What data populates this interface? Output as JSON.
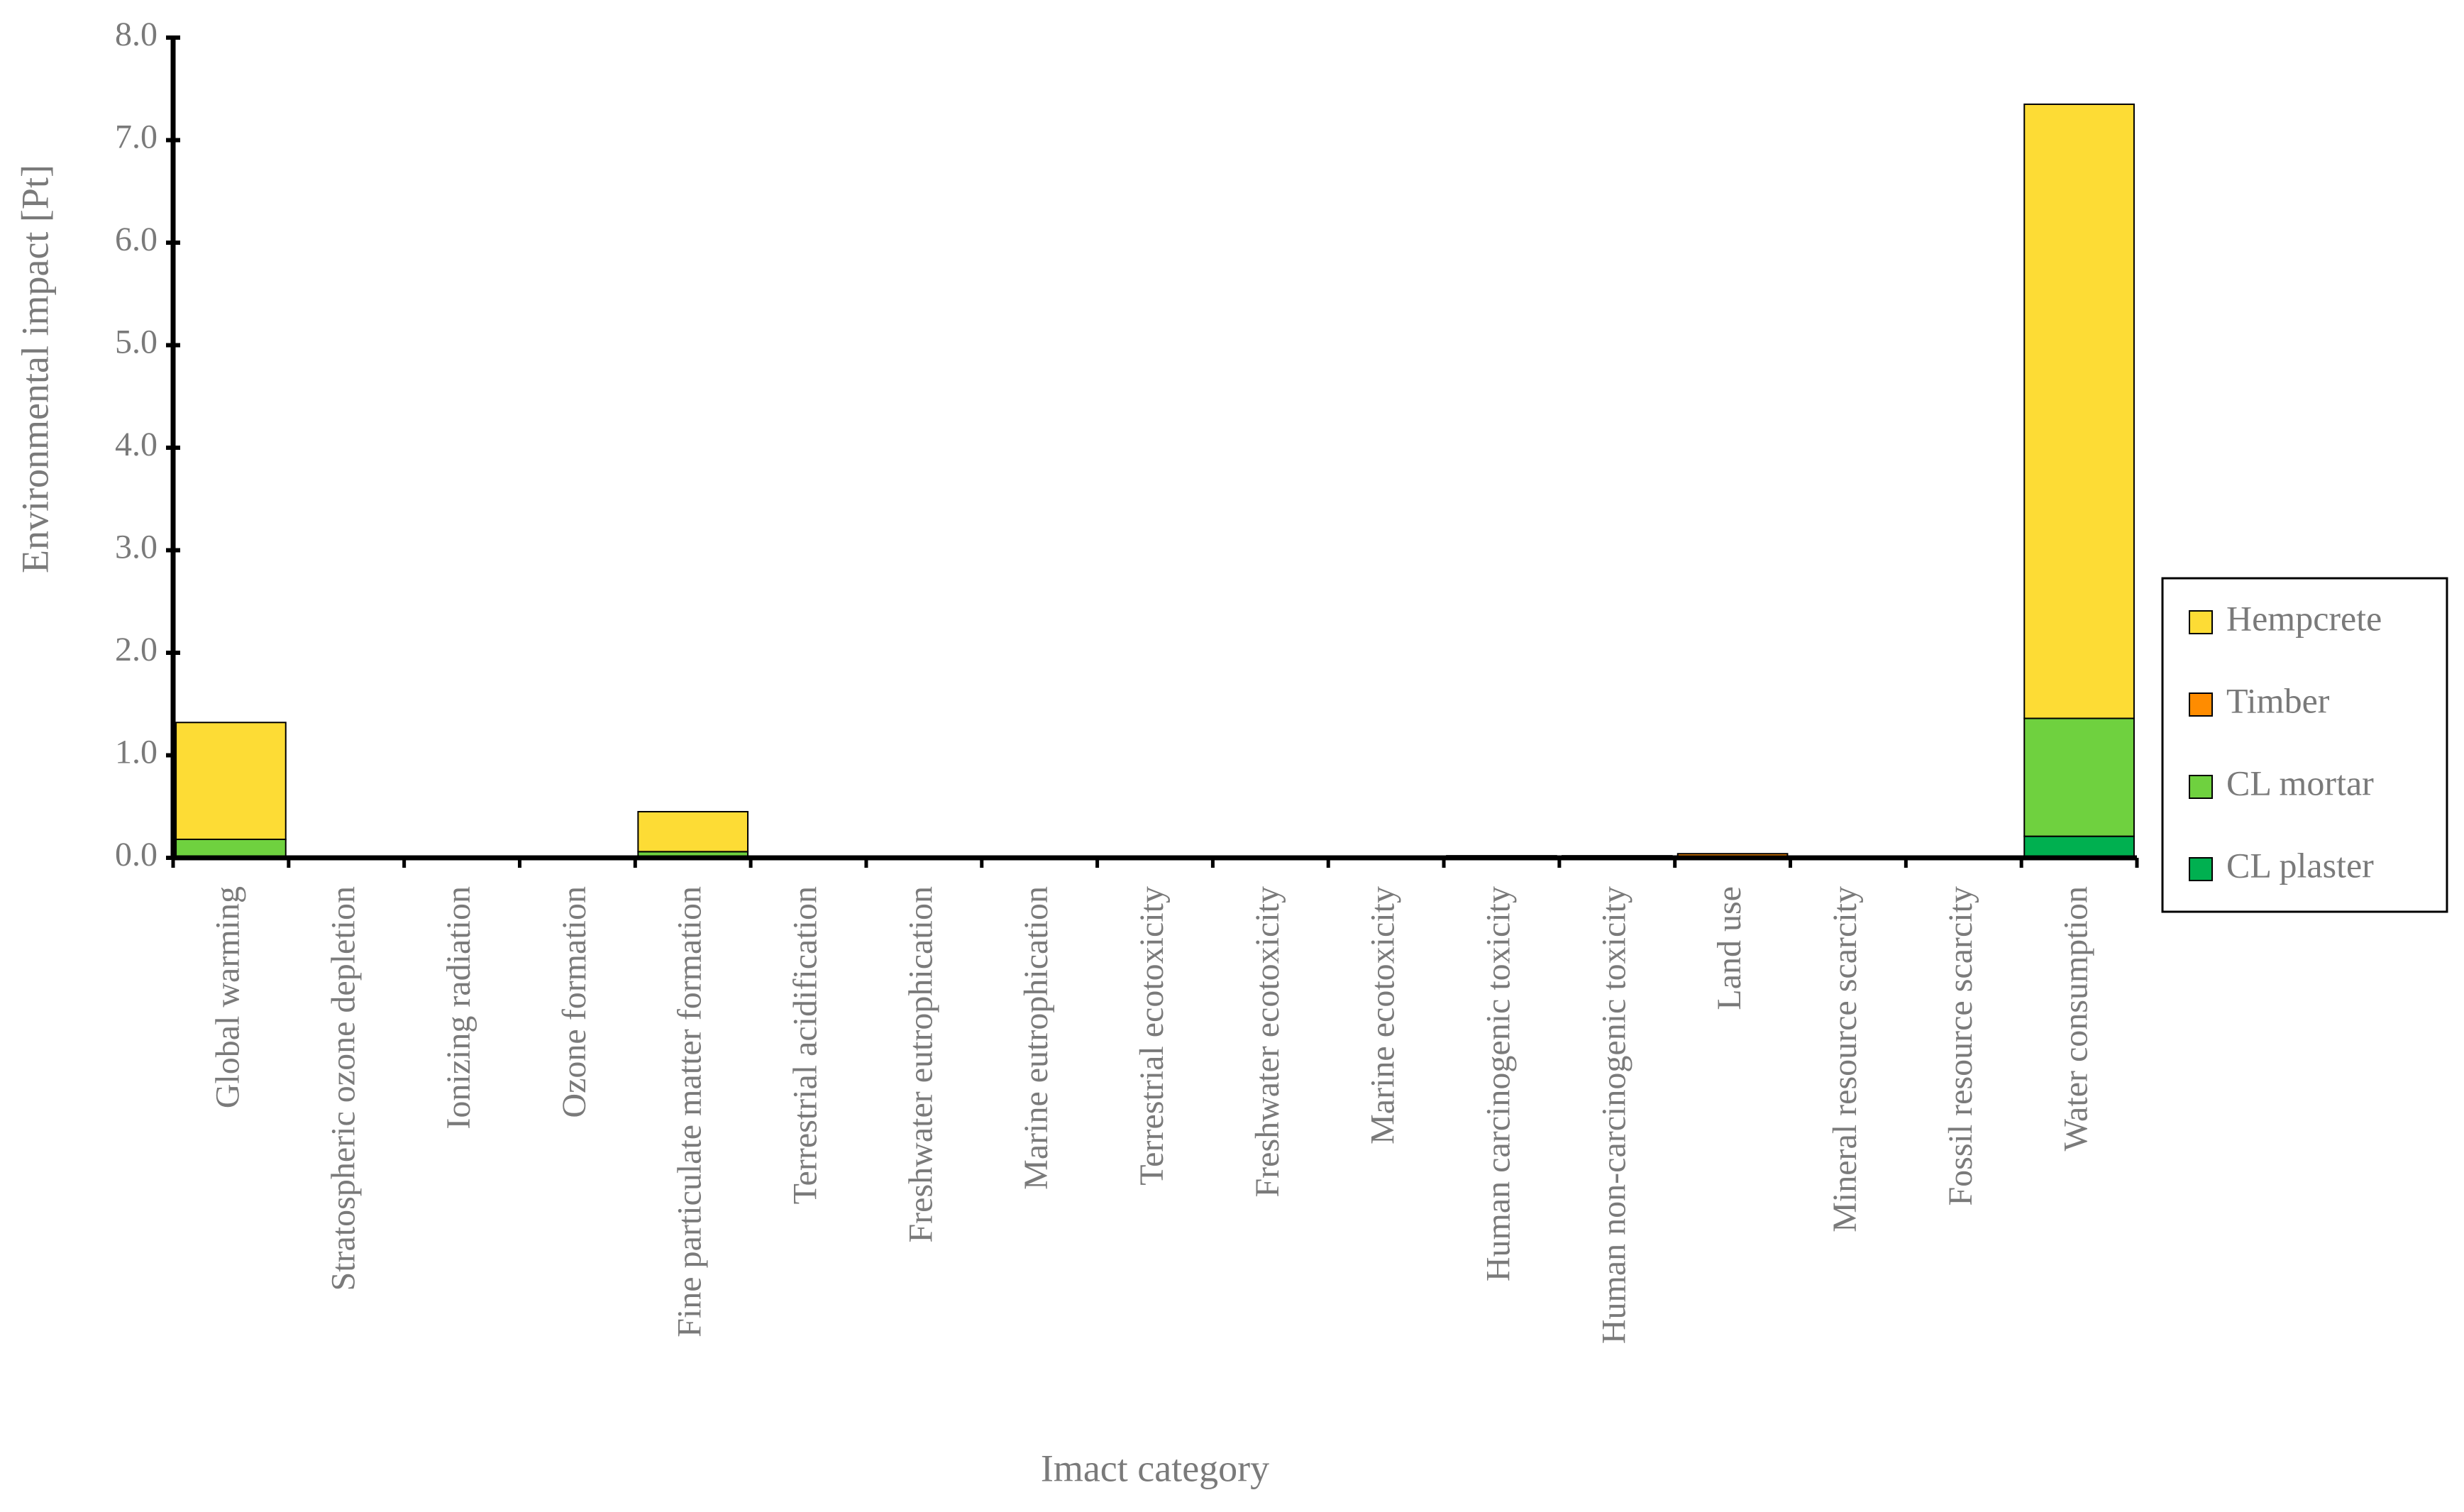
{
  "chart_data": {
    "type": "stacked_bar",
    "x_label": "Imact category",
    "y_label": "Environmental impact [Pt]",
    "categories": [
      "Global warming",
      "Stratospheric ozone depletion",
      "Ionizing radiation",
      "Ozone formation",
      "Fine particulate matter formation",
      "Terrestrial acidification",
      "Freshwater eutrophication",
      "Marine eutrophication",
      "Terrestrial ecotoxicity",
      "Freshwater ecotoxicity",
      "Marine ecotoxicity",
      "Human carcinogenic toxicity",
      "Human non-carcinogenic toxicity",
      "Land use",
      "Mineral resource scarcity",
      "Fossil resource scarcity",
      "Water consumption"
    ],
    "series": [
      {
        "name": "CL plaster",
        "color": "#00b050",
        "values": [
          0.01,
          0,
          0,
          0,
          0.01,
          0,
          0,
          0,
          0,
          0,
          0,
          0.01,
          0.01,
          0,
          0,
          0,
          0.21
        ]
      },
      {
        "name": "CL mortar",
        "color": "#6fd13f",
        "values": [
          0.17,
          0,
          0,
          0,
          0.05,
          0,
          0,
          0,
          0,
          0,
          0,
          0.01,
          0.01,
          0,
          0,
          0,
          1.15
        ]
      },
      {
        "name": "Timber",
        "color": "#ff8c00",
        "values": [
          0,
          0,
          0,
          0,
          0,
          0,
          0,
          0,
          0,
          0,
          0,
          0,
          0,
          0.04,
          0,
          0,
          0
        ]
      },
      {
        "name": "Hempcrete",
        "color": "#fddc35",
        "values": [
          1.14,
          0,
          0,
          0,
          0.39,
          0,
          0,
          0,
          0,
          0,
          0,
          0,
          0,
          0,
          0,
          0,
          5.99
        ]
      }
    ],
    "ylim": [
      0,
      8
    ],
    "yticks": [
      {
        "value": 0,
        "label": "0.0"
      },
      {
        "value": 1,
        "label": "1.0"
      },
      {
        "value": 2,
        "label": "2.0"
      },
      {
        "value": 3,
        "label": "3.0"
      },
      {
        "value": 4,
        "label": "4.0"
      },
      {
        "value": 5,
        "label": "5.0"
      },
      {
        "value": 6,
        "label": "6.0"
      },
      {
        "value": 7,
        "label": "7.0"
      },
      {
        "value": 8,
        "label": "8.0"
      }
    ],
    "legend": "right"
  }
}
